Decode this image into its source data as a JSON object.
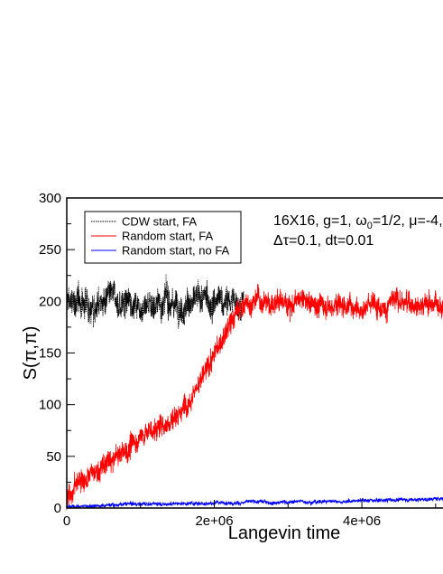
{
  "chart_data": {
    "type": "line",
    "title": "",
    "xlabel": "Langevin time",
    "ylabel": "S(π,π)",
    "xlim": [
      0,
      5100000
    ],
    "ylim": [
      0,
      300
    ],
    "x_ticks": [
      0,
      2000000,
      4000000
    ],
    "x_tick_labels": [
      "0",
      "2e+06",
      "4e+06"
    ],
    "y_ticks": [
      0,
      50,
      100,
      150,
      200,
      250,
      300
    ],
    "y_tick_labels": [
      "0",
      "50",
      "100",
      "150",
      "200",
      "250",
      "300"
    ],
    "grid": false,
    "legend_position": "top-left",
    "annotation": {
      "line1": "16X16, g=1, ω0=1/2, μ=-4,",
      "line2": "Δτ=0.1, dt=0.01"
    },
    "series": [
      {
        "name": "CDW start, FA",
        "color": "#000000",
        "style": "dotted",
        "x_range": [
          0,
          2400000
        ],
        "mean": 199,
        "fluctuation": 12
      },
      {
        "name": "Random start, FA",
        "color": "#ff0000",
        "style": "solid",
        "points": [
          [
            0,
            5
          ],
          [
            100000,
            22
          ],
          [
            200000,
            28
          ],
          [
            300000,
            30
          ],
          [
            400000,
            34
          ],
          [
            500000,
            40
          ],
          [
            600000,
            44
          ],
          [
            700000,
            50
          ],
          [
            800000,
            55
          ],
          [
            900000,
            62
          ],
          [
            1000000,
            70
          ],
          [
            1100000,
            75
          ],
          [
            1200000,
            76
          ],
          [
            1300000,
            80
          ],
          [
            1400000,
            86
          ],
          [
            1500000,
            92
          ],
          [
            1600000,
            100
          ],
          [
            1700000,
            115
          ],
          [
            1800000,
            122
          ],
          [
            1900000,
            132
          ],
          [
            2000000,
            150
          ],
          [
            2100000,
            160
          ],
          [
            2200000,
            175
          ],
          [
            2300000,
            188
          ],
          [
            2400000,
            198
          ],
          [
            2600000,
            200
          ],
          [
            3000000,
            199
          ],
          [
            3500000,
            198
          ],
          [
            4000000,
            197
          ],
          [
            4500000,
            199
          ],
          [
            5100000,
            198
          ]
        ],
        "fluctuation": 9
      },
      {
        "name": "Random start, no FA",
        "color": "#0000ff",
        "style": "solid",
        "points": [
          [
            0,
            1
          ],
          [
            500000,
            3
          ],
          [
            1000000,
            4
          ],
          [
            2000000,
            5
          ],
          [
            3000000,
            6
          ],
          [
            4000000,
            7
          ],
          [
            5100000,
            9
          ]
        ],
        "fluctuation": 1.6
      }
    ]
  }
}
